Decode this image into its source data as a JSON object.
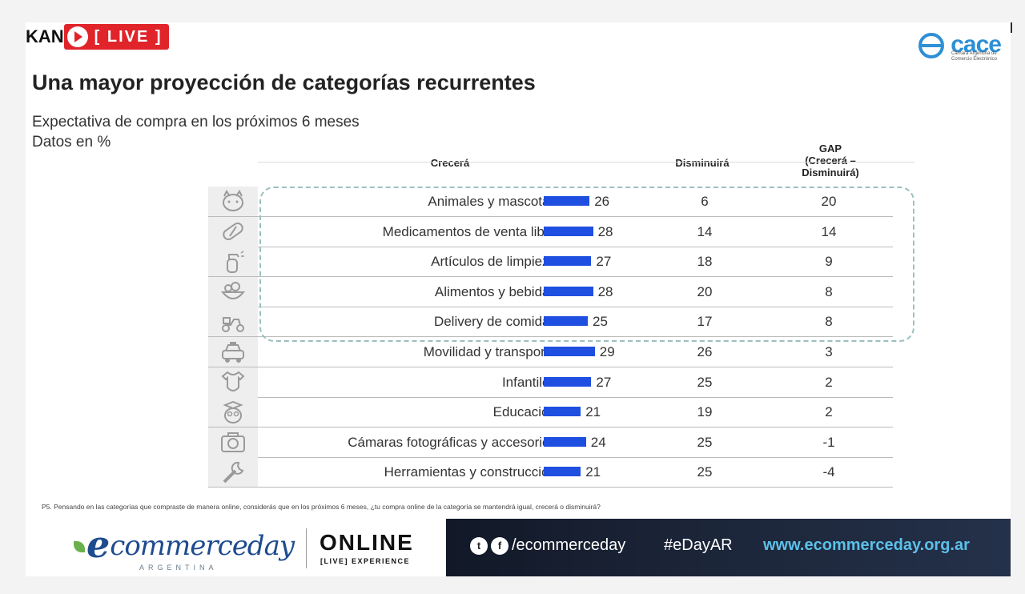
{
  "stream": {
    "brand": "KAN",
    "live_label": "[ LIVE ]"
  },
  "logo": {
    "name": "cace",
    "subtitle": "Cámara Argentina de Comercio Electrónico"
  },
  "slide": {
    "title": "Una mayor proyección de categorías recurrentes",
    "subtitle_line1": "Expectativa de compra en los próximos 6 meses",
    "subtitle_line2": "Datos en %"
  },
  "table": {
    "headers": {
      "crecera": "Crecerá",
      "disminuira": "Disminuirá",
      "gap_line1": "GAP",
      "gap_line2": "(Crecerá –",
      "gap_line3": "Disminuirá)"
    },
    "bar_color": "#1f4fe0",
    "rows": [
      {
        "icon": "pet-cat-icon",
        "category": "Animales y mascotas",
        "crecera": "26",
        "crecera_num": 26,
        "disminuira": "6",
        "gap": "20"
      },
      {
        "icon": "pill-capsule-icon",
        "category": "Medicamentos de venta libre",
        "crecera": "28",
        "crecera_num": 28,
        "disminuira": "14",
        "gap": "14"
      },
      {
        "icon": "spray-bottle-icon",
        "category": "Artículos de limpieza",
        "crecera": "27",
        "crecera_num": 27,
        "disminuira": "18",
        "gap": "9"
      },
      {
        "icon": "food-bowl-icon",
        "category": "Alimentos y bebidas",
        "crecera": "28",
        "crecera_num": 28,
        "disminuira": "20",
        "gap": "8"
      },
      {
        "icon": "delivery-scooter-icon",
        "category": "Delivery de comidas",
        "crecera": "25",
        "crecera_num": 25,
        "disminuira": "17",
        "gap": "8"
      },
      {
        "icon": "taxi-car-icon",
        "category": "Movilidad y transporte",
        "crecera": "29",
        "crecera_num": 29,
        "disminuira": "26",
        "gap": "3"
      },
      {
        "icon": "baby-bodysuit-icon",
        "category": "Infantiles",
        "crecera": "27",
        "crecera_num": 27,
        "disminuira": "25",
        "gap": "2"
      },
      {
        "icon": "graduation-owl-icon",
        "category": "Educación",
        "crecera": "21",
        "crecera_num": 21,
        "disminuira": "19",
        "gap": "2"
      },
      {
        "icon": "camera-icon",
        "category": "Cámaras fotográficas y accesorios",
        "crecera": "24",
        "crecera_num": 24,
        "disminuira": "25",
        "gap": "-1"
      },
      {
        "icon": "wrench-tool-icon",
        "category": "Herramientas y construcción",
        "crecera": "21",
        "crecera_num": 21,
        "disminuira": "25",
        "gap": "-4"
      }
    ],
    "footnote": "P5. Pensando en las categorías que compraste de manera online, considerás que en los próximos 6 meses, ¿tu compra online de la categoría se mantendrá igual, crecerá o disminuirá?"
  },
  "banner": {
    "ecommerce_e": "e",
    "ecommerce_rest": "commerceday",
    "country": "ARGENTINA",
    "online": "ONLINE",
    "live_experience": "[LIVE] EXPERIENCE",
    "twitter_icon": "twitter-icon",
    "facebook_icon": "facebook-icon",
    "social_handle": "/ecommerceday",
    "hashtag": "#eDayAR",
    "url": "www.ecommerceday.org.ar"
  }
}
